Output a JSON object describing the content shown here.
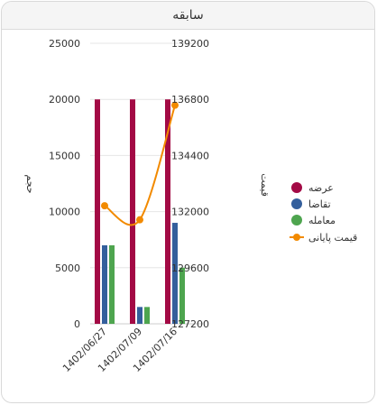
{
  "header": {
    "title": "سابقه"
  },
  "chart_data": {
    "type": "bar",
    "categories": [
      "1402/06/27",
      "1402/07/09",
      "1402/07/16"
    ],
    "series": [
      {
        "name": "عرضه",
        "type": "bar",
        "axis": "left",
        "color": "#a30a45",
        "values": [
          20000,
          20000,
          20000
        ]
      },
      {
        "name": "تقاضا",
        "type": "bar",
        "axis": "left",
        "color": "#345f9c",
        "values": [
          7000,
          1500,
          9000
        ]
      },
      {
        "name": "معامله",
        "type": "bar",
        "axis": "left",
        "color": "#4ea54f",
        "values": [
          7000,
          1500,
          5000
        ]
      },
      {
        "name": "قیمت پایانی",
        "type": "line",
        "axis": "right",
        "color": "#f28a00",
        "values": [
          132250,
          131650,
          136550
        ]
      }
    ],
    "y_left": {
      "label": "حجم",
      "ticks": [
        0,
        5000,
        10000,
        15000,
        20000,
        25000
      ],
      "ylim": [
        0,
        25000
      ]
    },
    "y_right": {
      "label": "قیمت",
      "ticks": [
        127200,
        129600,
        132000,
        134400,
        136800,
        139200
      ],
      "ylim": [
        127200,
        139200
      ]
    },
    "grid": true,
    "legend": "right"
  }
}
